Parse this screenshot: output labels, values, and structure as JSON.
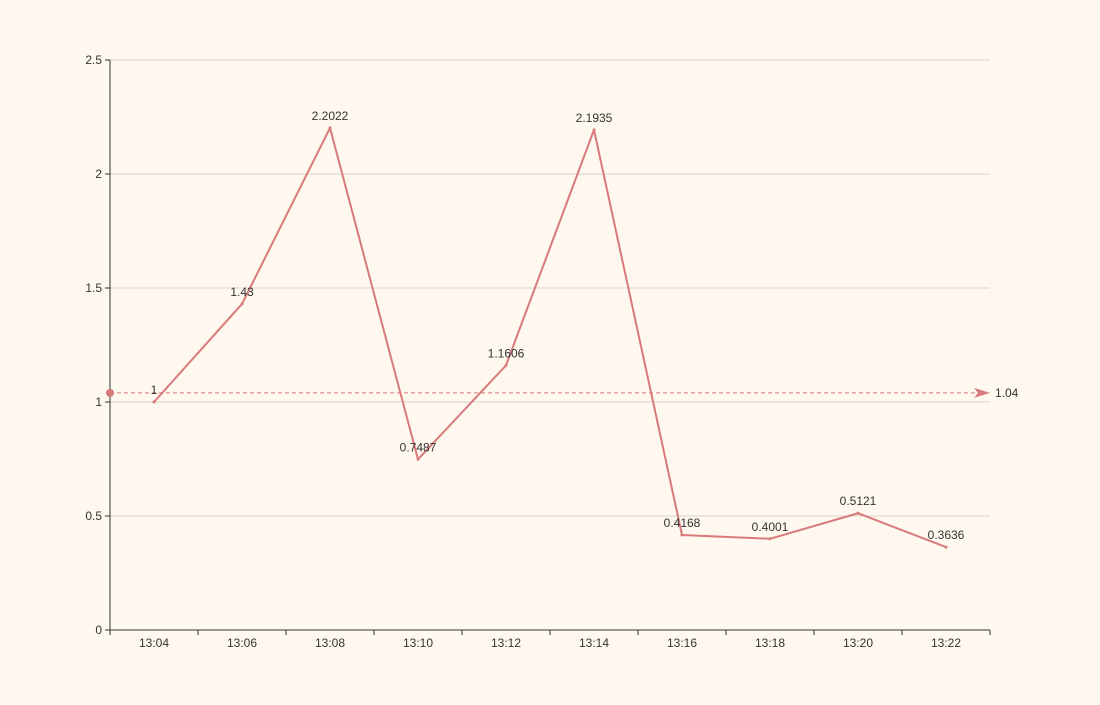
{
  "chart_data": {
    "type": "line",
    "title": "",
    "xlabel": "",
    "ylabel": "",
    "categories": [
      "13:04",
      "13:06",
      "13:08",
      "13:10",
      "13:12",
      "13:14",
      "13:16",
      "13:18",
      "13:20",
      "13:22"
    ],
    "series": [
      {
        "values": [
          1,
          1.43,
          2.2022,
          0.7487,
          1.1606,
          2.1935,
          0.4168,
          0.4001,
          0.5121,
          0.3636
        ],
        "labels": [
          "1",
          "1.43",
          "2.2022",
          "0.7487",
          "1.1606",
          "2.1935",
          "0.4168",
          "0.4001",
          "0.5121",
          "0.3636"
        ],
        "color": "#d97a7a"
      }
    ],
    "ylim": [
      0,
      2.5
    ],
    "yticks": [
      0,
      0.5,
      1,
      1.5,
      2,
      2.5
    ],
    "ytick_labels": [
      "0",
      "0.5",
      "1",
      "1.5",
      "2",
      "2.5"
    ],
    "grid": true,
    "legend": "none",
    "mark_line": {
      "value": 1.04,
      "label": "1.04",
      "style": "dashed",
      "color": "#d97a7a"
    },
    "colors": {
      "background": "#fef8ef",
      "axis": "#333333",
      "grid": "#d9d4c8",
      "text": "#333333"
    }
  }
}
